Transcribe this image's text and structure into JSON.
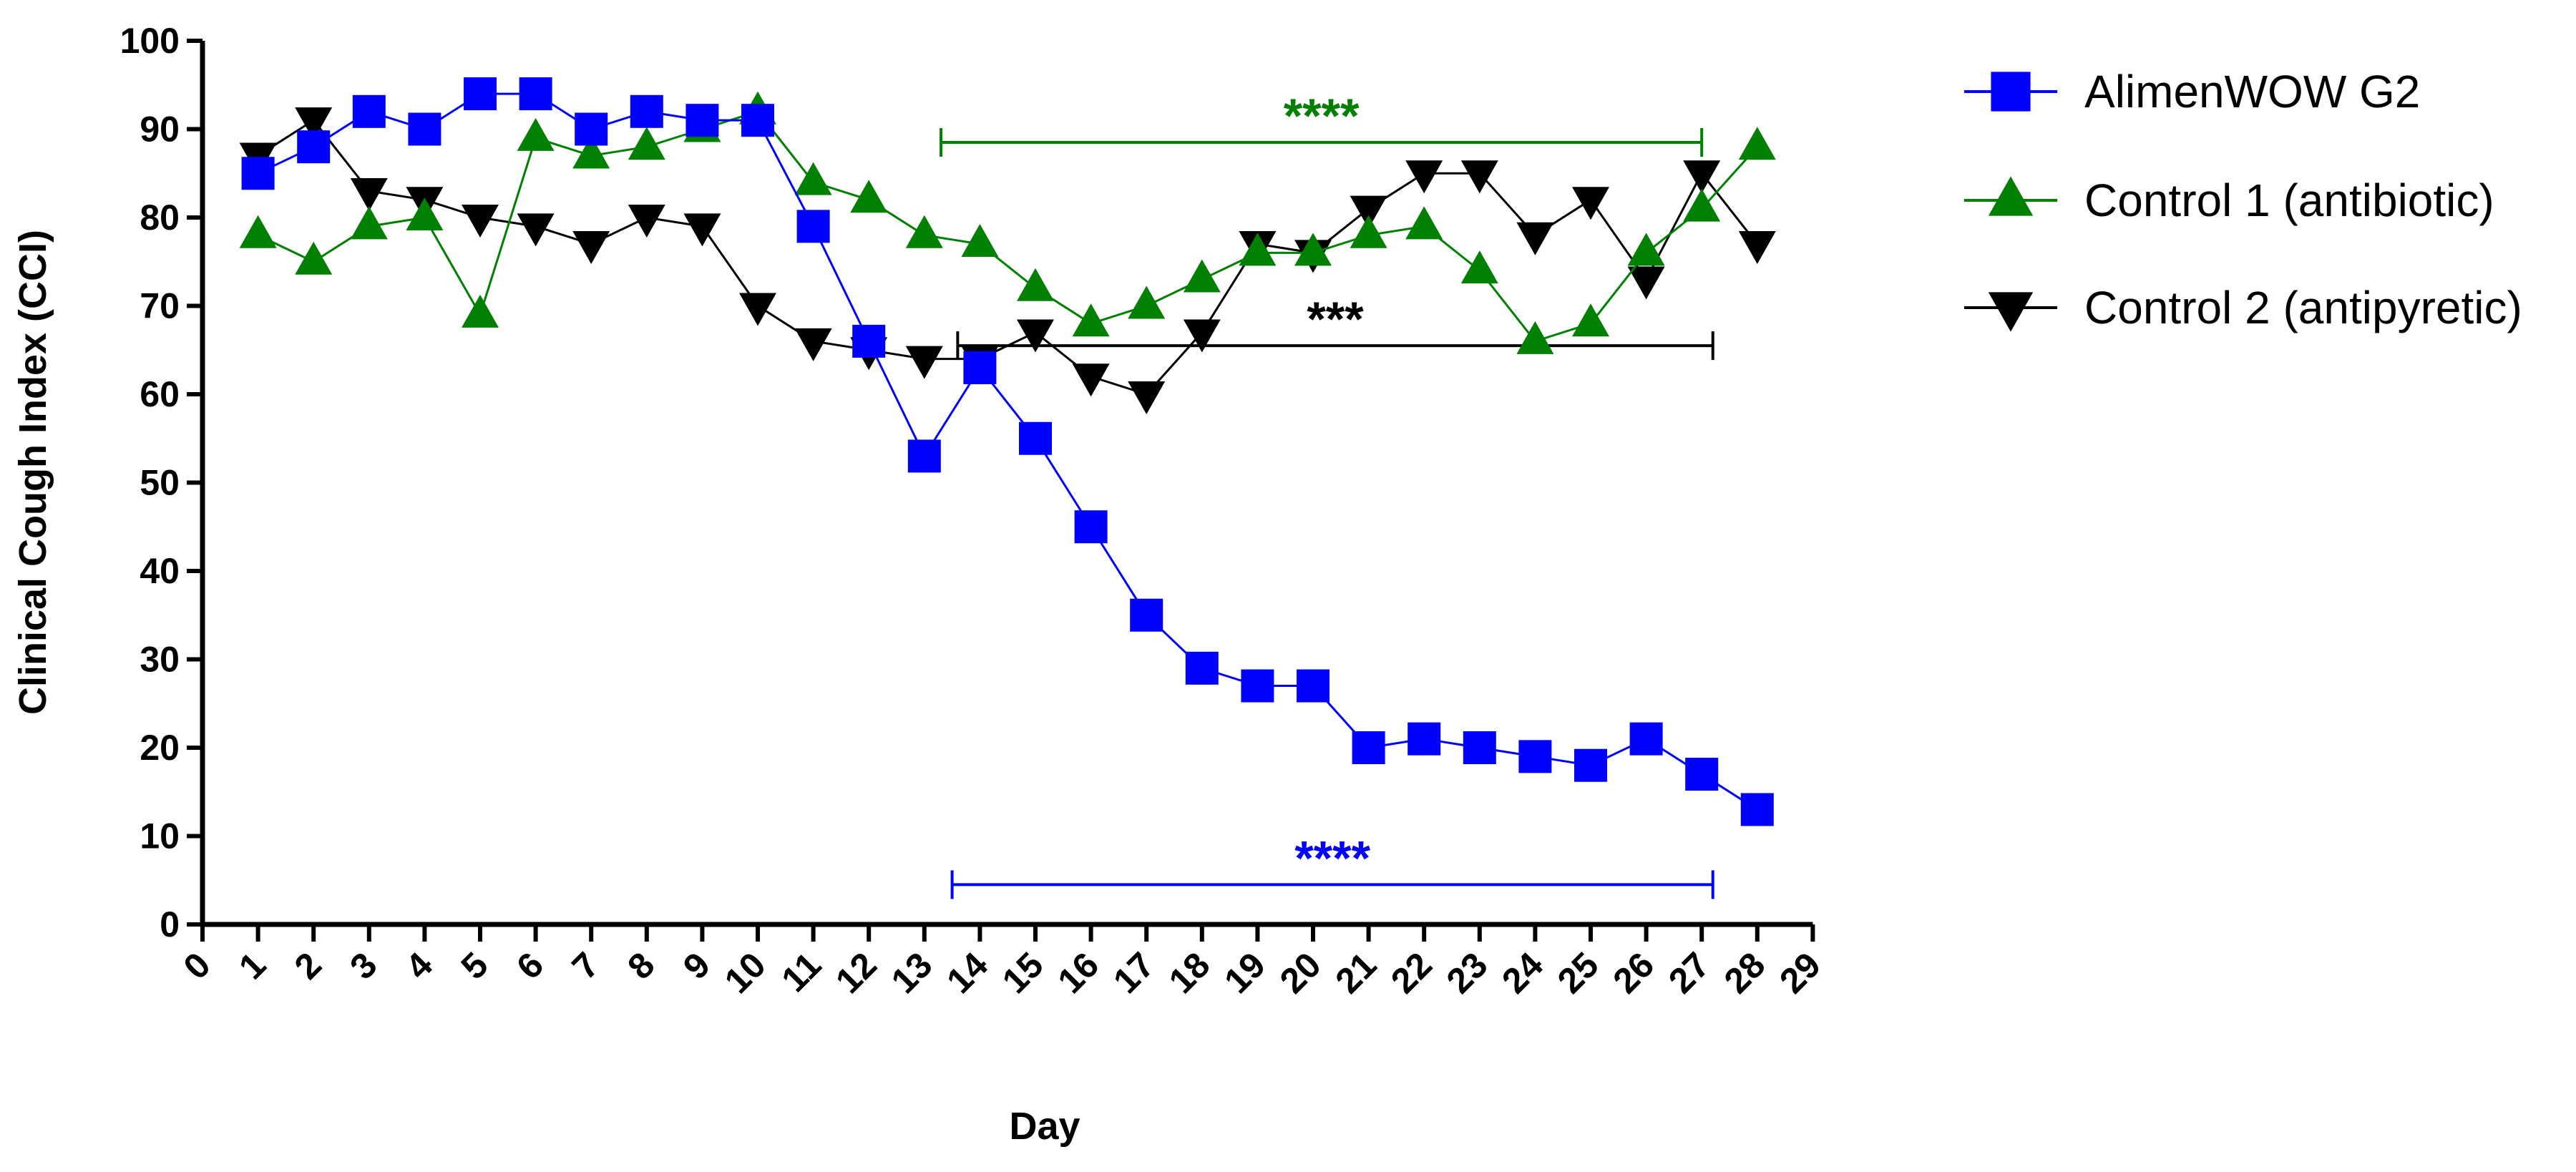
{
  "chart_data": {
    "type": "line",
    "xlabel": "Day",
    "ylabel": "Clinical Cough Index (CCI)",
    "xlim": [
      0,
      29
    ],
    "ylim": [
      0,
      100
    ],
    "x_ticks": [
      "0",
      "1",
      "2",
      "3",
      "4",
      "5",
      "6",
      "7",
      "8",
      "9",
      "10",
      "11",
      "12",
      "13",
      "14",
      "15",
      "16",
      "17",
      "18",
      "19",
      "20",
      "21",
      "22",
      "23",
      "24",
      "25",
      "26",
      "27",
      "28",
      "29"
    ],
    "y_ticks": [
      "0",
      "10",
      "20",
      "30",
      "40",
      "50",
      "60",
      "70",
      "80",
      "90",
      "100"
    ],
    "grid": false,
    "legend_position": "right",
    "series": [
      {
        "name": "AlimenWOW G2",
        "color": "#0000ff",
        "marker": "square",
        "x": [
          1,
          2,
          3,
          4,
          5,
          6,
          7,
          8,
          9,
          10,
          11,
          12,
          13,
          14,
          15,
          16,
          17,
          18,
          19,
          20,
          21,
          22,
          23,
          24,
          25,
          26,
          27,
          28
        ],
        "values": [
          85,
          88,
          92,
          90,
          94,
          94,
          90,
          92,
          91,
          91,
          79,
          66,
          53,
          63,
          55,
          45,
          35,
          29,
          27,
          27,
          20,
          21,
          20,
          19,
          18,
          21,
          17,
          13
        ]
      },
      {
        "name": "Control 1 (antibiotic)",
        "color": "#008000",
        "marker": "triangle-up",
        "x": [
          1,
          2,
          3,
          4,
          5,
          6,
          7,
          8,
          9,
          10,
          11,
          12,
          13,
          14,
          15,
          16,
          17,
          18,
          19,
          20,
          21,
          22,
          23,
          24,
          25,
          26,
          27,
          28
        ],
        "values": [
          78,
          75,
          79,
          80,
          69,
          89,
          87,
          88,
          90,
          92,
          84,
          82,
          78,
          77,
          72,
          68,
          70,
          73,
          76,
          76,
          78,
          79,
          74,
          66,
          68,
          76,
          81,
          88
        ]
      },
      {
        "name": "Control 2 (antipyretic)",
        "color": "#000000",
        "marker": "triangle-down",
        "x": [
          1,
          2,
          3,
          4,
          5,
          6,
          7,
          8,
          9,
          10,
          11,
          12,
          13,
          14,
          15,
          16,
          17,
          18,
          19,
          20,
          21,
          22,
          23,
          24,
          25,
          26,
          27,
          28
        ],
        "values": [
          87,
          91,
          83,
          82,
          80,
          79,
          77,
          80,
          79,
          70,
          66,
          65,
          64,
          64,
          67,
          62,
          60,
          67,
          77,
          76,
          81,
          85,
          85,
          78,
          82,
          73,
          85,
          77
        ]
      }
    ],
    "annotations": [
      {
        "text": "****",
        "color": "#008000",
        "bracket_x": [
          13.3,
          27
        ],
        "y": 88.5
      },
      {
        "text": "***",
        "color": "#000000",
        "bracket_x": [
          13.6,
          27.2
        ],
        "y": 65.5
      },
      {
        "text": "****",
        "color": "#0000ff",
        "bracket_x": [
          13.5,
          27.2
        ],
        "y": 4.5
      }
    ]
  }
}
